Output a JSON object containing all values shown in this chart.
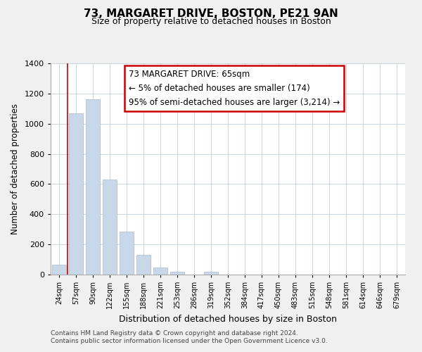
{
  "title": "73, MARGARET DRIVE, BOSTON, PE21 9AN",
  "subtitle": "Size of property relative to detached houses in Boston",
  "xlabel": "Distribution of detached houses by size in Boston",
  "ylabel": "Number of detached properties",
  "bar_labels": [
    "24sqm",
    "57sqm",
    "90sqm",
    "122sqm",
    "155sqm",
    "188sqm",
    "221sqm",
    "253sqm",
    "286sqm",
    "319sqm",
    "352sqm",
    "384sqm",
    "417sqm",
    "450sqm",
    "483sqm",
    "515sqm",
    "548sqm",
    "581sqm",
    "614sqm",
    "646sqm",
    "679sqm"
  ],
  "bar_values": [
    65,
    1070,
    1160,
    630,
    285,
    130,
    48,
    20,
    0,
    20,
    0,
    0,
    0,
    0,
    0,
    0,
    0,
    0,
    0,
    0,
    0
  ],
  "bar_color": "#c8d8e8",
  "bar_edge_color": "#aabbcc",
  "vline_color": "#cc0000",
  "ylim": [
    0,
    1400
  ],
  "yticks": [
    0,
    200,
    400,
    600,
    800,
    1000,
    1200,
    1400
  ],
  "annotation_title": "73 MARGARET DRIVE: 65sqm",
  "annotation_line1": "← 5% of detached houses are smaller (174)",
  "annotation_line2": "95% of semi-detached houses are larger (3,214) →",
  "footer_line1": "Contains HM Land Registry data © Crown copyright and database right 2024.",
  "footer_line2": "Contains public sector information licensed under the Open Government Licence v3.0.",
  "background_color": "#f0f0f0",
  "plot_bg_color": "#ffffff",
  "grid_color": "#c8d4de"
}
